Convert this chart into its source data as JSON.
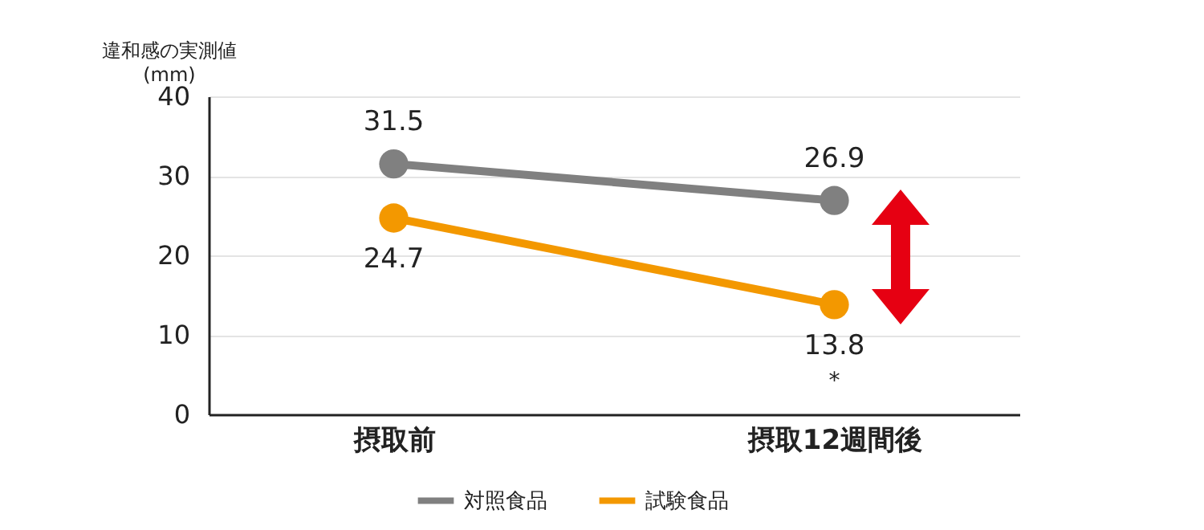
{
  "chart_data": {
    "type": "line",
    "ylabel": "違和感の実測値\n(mm)",
    "categories": [
      "摂取前",
      "摂取12週間後"
    ],
    "series": [
      {
        "name": "対照食品",
        "color": "#808080",
        "values": [
          31.5,
          26.9
        ]
      },
      {
        "name": "試験食品",
        "color": "#f39800",
        "values": [
          24.7,
          13.8
        ]
      }
    ],
    "ylim": [
      0,
      40
    ],
    "yticks": [
      0,
      10,
      20,
      30,
      40
    ],
    "grid": "y",
    "legend": "bottom",
    "marker": "circle",
    "line_style": "solid",
    "data_labels": true,
    "annotations": [
      {
        "text": "*",
        "x": "摂取12週間後",
        "y": 13.8
      }
    ]
  }
}
